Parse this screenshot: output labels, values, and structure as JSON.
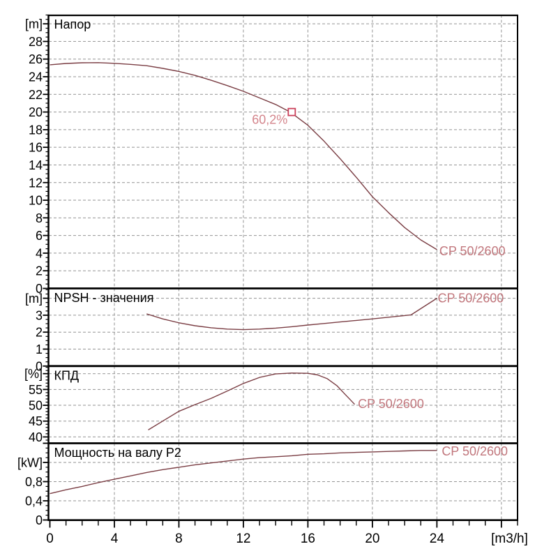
{
  "chart_data": {
    "type": "line",
    "pump_model": "CP 50/2600",
    "colors": {
      "curve": "#7a3d43",
      "grid": "#939393",
      "axis": "#000000",
      "text": "#000000",
      "curve_label": "#c1767c",
      "op_marker": "#ca3f59",
      "op_label": "#d4858c",
      "background": "#ffffff"
    },
    "x_axis": {
      "min": 0,
      "max": 29,
      "minor_step": 1,
      "major_step": 4,
      "grid_values": [
        4,
        8,
        12,
        16,
        20,
        24,
        28
      ],
      "tick_labels": [
        [
          0,
          "0"
        ],
        [
          4,
          "4"
        ],
        [
          8,
          "8"
        ],
        [
          12,
          "12"
        ],
        [
          16,
          "16"
        ],
        [
          20,
          "20"
        ],
        [
          24,
          "24"
        ]
      ],
      "unit_label": "[m3/h]"
    },
    "panels": [
      {
        "title": "Напор",
        "y_axis": {
          "min": 0,
          "max": 31,
          "minor_step": 0.5,
          "major_step": 2,
          "grid_values": [
            2,
            4,
            6,
            8,
            10,
            12,
            14,
            16,
            18,
            20,
            22,
            24,
            26,
            28,
            30
          ],
          "tick_labels": [
            [
              0,
              "0"
            ],
            [
              2,
              "2"
            ],
            [
              4,
              "4"
            ],
            [
              6,
              "6"
            ],
            [
              8,
              "8"
            ],
            [
              10,
              "10"
            ],
            [
              12,
              "12"
            ],
            [
              14,
              "14"
            ],
            [
              16,
              "16"
            ],
            [
              18,
              "18"
            ],
            [
              20,
              "20"
            ],
            [
              22,
              "22"
            ],
            [
              24,
              "24"
            ],
            [
              26,
              "26"
            ],
            [
              28,
              "28"
            ]
          ],
          "unit_label": "[m]",
          "unit_label_at": 30
        },
        "series": [
          {
            "name": "CP 50/2600",
            "points": [
              [
                0,
                25.35
              ],
              [
                1,
                25.5
              ],
              [
                2,
                25.58
              ],
              [
                3,
                25.6
              ],
              [
                4,
                25.52
              ],
              [
                5,
                25.4
              ],
              [
                6,
                25.25
              ],
              [
                7,
                24.95
              ],
              [
                8,
                24.6
              ],
              [
                9,
                24.15
              ],
              [
                10,
                23.6
              ],
              [
                11,
                23.0
              ],
              [
                12,
                22.35
              ],
              [
                13,
                21.6
              ],
              [
                14,
                20.85
              ],
              [
                14.9,
                20.0
              ],
              [
                16,
                18.5
              ],
              [
                17,
                16.7
              ],
              [
                18,
                14.7
              ],
              [
                19,
                12.6
              ],
              [
                20,
                10.4
              ],
              [
                21,
                8.6
              ],
              [
                22,
                6.9
              ],
              [
                23,
                5.5
              ],
              [
                24,
                4.4
              ]
            ]
          }
        ],
        "curve_label": {
          "text": "CP 50/2600",
          "x": 24.15,
          "y": 4.25
        },
        "operating_point": {
          "x": 15,
          "y": 20,
          "label": "60,2%"
        }
      },
      {
        "title": "NPSH - значения",
        "y_axis": {
          "min": 0,
          "max": 4.58,
          "minor_step": 0.25,
          "major_step": 1,
          "grid_values": [
            1,
            2,
            3,
            4
          ],
          "tick_labels": [
            [
              0,
              "0"
            ],
            [
              1,
              "1"
            ],
            [
              2,
              "2"
            ],
            [
              3,
              "3"
            ]
          ],
          "unit_label": "[m]",
          "unit_label_at": 4
        },
        "series": [
          {
            "name": "CP 50/2600",
            "points": [
              [
                6,
                3.08
              ],
              [
                7,
                2.78
              ],
              [
                8,
                2.55
              ],
              [
                9,
                2.38
              ],
              [
                10,
                2.26
              ],
              [
                11,
                2.18
              ],
              [
                12,
                2.15
              ],
              [
                13,
                2.18
              ],
              [
                14,
                2.24
              ],
              [
                15,
                2.32
              ],
              [
                16,
                2.42
              ],
              [
                17,
                2.51
              ],
              [
                18,
                2.6
              ],
              [
                19,
                2.69
              ],
              [
                20,
                2.78
              ],
              [
                21,
                2.88
              ],
              [
                22,
                2.98
              ],
              [
                22.4,
                3.02
              ],
              [
                24,
                4.0
              ]
            ]
          }
        ],
        "curve_label": {
          "text": "CP 50/2600",
          "x": 24.05,
          "y": 4.0
        }
      },
      {
        "title": "КПД",
        "y_axis": {
          "min": 38,
          "max": 62.4,
          "minor_step": 1,
          "major_step": 5,
          "grid_values": [
            40,
            45,
            50,
            55,
            60
          ],
          "tick_labels": [
            [
              40,
              "40"
            ],
            [
              45,
              "45"
            ],
            [
              50,
              "50"
            ],
            [
              55,
              "55"
            ]
          ],
          "unit_label": "[%]",
          "unit_label_at": 60
        },
        "series": [
          {
            "name": "CP 50/2600",
            "points": [
              [
                6.1,
                42.2
              ],
              [
                7,
                45.0
              ],
              [
                8,
                48.1
              ],
              [
                9,
                50.2
              ],
              [
                10,
                52.2
              ],
              [
                11,
                54.5
              ],
              [
                12,
                56.9
              ],
              [
                13,
                58.8
              ],
              [
                14,
                59.9
              ],
              [
                15,
                60.2
              ],
              [
                16,
                60.1
              ],
              [
                16.6,
                59.6
              ],
              [
                17.2,
                58.4
              ],
              [
                17.8,
                56.2
              ],
              [
                18.3,
                53.5
              ],
              [
                18.9,
                50.3
              ]
            ]
          }
        ],
        "curve_label": {
          "text": "CP 50/2600",
          "x": 19.1,
          "y": 50.4
        }
      },
      {
        "title": "Мощность на валу P2",
        "y_axis": {
          "min": 0,
          "max": 1.6,
          "minor_step": 0.1,
          "major_step": 0.4,
          "grid_values": [
            0.4,
            0.8,
            1.2
          ],
          "tick_labels": [
            [
              0,
              "0"
            ],
            [
              0.4,
              "0,4"
            ],
            [
              0.8,
              "0,8"
            ]
          ],
          "unit_label": "[kW]",
          "unit_label_at": 1.2
        },
        "series": [
          {
            "name": "CP 50/2600",
            "points": [
              [
                0,
                0.55
              ],
              [
                1,
                0.63
              ],
              [
                2,
                0.7
              ],
              [
                3,
                0.78
              ],
              [
                4,
                0.85
              ],
              [
                5,
                0.92
              ],
              [
                6,
                0.99
              ],
              [
                7,
                1.05
              ],
              [
                8,
                1.1
              ],
              [
                9,
                1.15
              ],
              [
                10,
                1.19
              ],
              [
                11,
                1.23
              ],
              [
                12,
                1.27
              ],
              [
                13,
                1.3
              ],
              [
                14,
                1.32
              ],
              [
                15,
                1.34
              ],
              [
                16,
                1.37
              ],
              [
                17,
                1.38
              ],
              [
                18,
                1.4
              ],
              [
                19,
                1.41
              ],
              [
                20,
                1.42
              ],
              [
                21,
                1.43
              ],
              [
                22,
                1.44
              ],
              [
                23,
                1.45
              ],
              [
                24,
                1.45
              ]
            ]
          }
        ],
        "curve_label": {
          "text": "CP 50/2600",
          "x": 24.3,
          "y": 1.43
        }
      }
    ]
  }
}
